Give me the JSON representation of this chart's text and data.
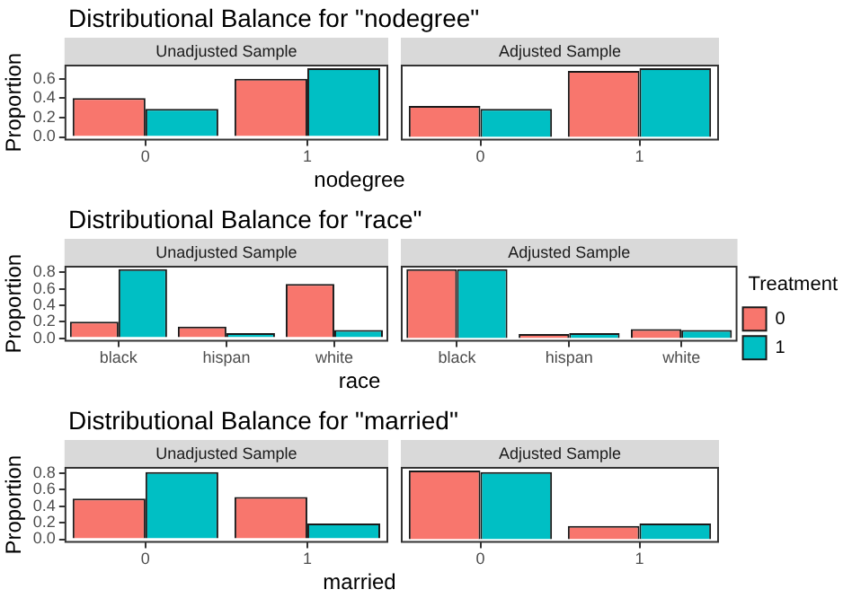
{
  "chart_data": [
    {
      "type": "bar",
      "title": "Distributional Balance for \"nodegree\"",
      "subtitle": "Unadjusted Sample",
      "xlabel": "nodegree",
      "ylabel": "Proportion",
      "categories": [
        "0",
        "1"
      ],
      "series": [
        {
          "color": "#f8766d",
          "values": [
            0.4,
            0.6
          ]
        },
        {
          "color": "#00bfc4",
          "values": [
            0.29,
            0.71
          ]
        }
      ],
      "ylim": [
        -0.036,
        0.746
      ],
      "yticks": [
        {
          "value": 0,
          "label": "0.0"
        },
        {
          "value": 0.2,
          "label": "0.2"
        },
        {
          "value": 0.4,
          "label": "0.4"
        },
        {
          "value": 0.6,
          "label": "0.6"
        }
      ],
      "grid": false,
      "legend": false
    },
    {
      "type": "bar",
      "subtitle": "Adjusted Sample",
      "categories": [
        "0",
        "1"
      ],
      "series": [
        {
          "color": "#f8766d",
          "values": [
            0.32,
            0.68
          ]
        },
        {
          "color": "#00bfc4",
          "values": [
            0.29,
            0.71
          ]
        }
      ],
      "ylim": [
        -0.036,
        0.746
      ],
      "tick_labels": "x",
      "grid": false,
      "legend": false
    },
    {
      "type": "bar",
      "title": "Distributional Balance for \"race\"",
      "subtitle": "Unadjusted Sample",
      "xlabel": "race",
      "ylabel": "Proportion",
      "categories": [
        "black",
        "hispan",
        "white"
      ],
      "series": [
        {
          "color": "#f8766d",
          "values": [
            0.2,
            0.14,
            0.66
          ]
        },
        {
          "color": "#00bfc4",
          "values": [
            0.84,
            0.06,
            0.1
          ]
        }
      ],
      "ylim": [
        -0.042,
        0.882
      ],
      "yticks": [
        {
          "value": 0,
          "label": "0.0"
        },
        {
          "value": 0.2,
          "label": "0.2"
        },
        {
          "value": 0.4,
          "label": "0.4"
        },
        {
          "value": 0.6,
          "label": "0.6"
        },
        {
          "value": 0.8,
          "label": "0.8"
        }
      ],
      "grid": false,
      "legend": false
    },
    {
      "type": "bar",
      "subtitle": "Adjusted Sample",
      "legend_title": "Treatment",
      "categories": [
        "black",
        "hispan",
        "white"
      ],
      "series": [
        {
          "name": "0",
          "color": "#f8766d",
          "values": [
            0.84,
            0.05,
            0.11
          ]
        },
        {
          "name": "1",
          "color": "#00bfc4",
          "values": [
            0.84,
            0.06,
            0.1
          ]
        }
      ],
      "ylim": [
        -0.042,
        0.882
      ],
      "tick_labels": "x",
      "grid": false,
      "legend": "right"
    },
    {
      "type": "bar",
      "title": "Distributional Balance for \"married\"",
      "subtitle": "Unadjusted Sample",
      "xlabel": "married",
      "ylabel": "Proportion",
      "categories": [
        "0",
        "1"
      ],
      "series": [
        {
          "color": "#f8766d",
          "values": [
            0.49,
            0.51
          ]
        },
        {
          "color": "#00bfc4",
          "values": [
            0.81,
            0.19
          ]
        }
      ],
      "ylim": [
        -0.042,
        0.872
      ],
      "yticks": [
        {
          "value": 0,
          "label": "0.0"
        },
        {
          "value": 0.2,
          "label": "0.2"
        },
        {
          "value": 0.4,
          "label": "0.4"
        },
        {
          "value": 0.6,
          "label": "0.6"
        },
        {
          "value": 0.8,
          "label": "0.8"
        }
      ],
      "grid": false,
      "legend": false
    },
    {
      "type": "bar",
      "subtitle": "Adjusted Sample",
      "categories": [
        "0",
        "1"
      ],
      "series": [
        {
          "color": "#f8766d",
          "values": [
            0.83,
            0.16
          ]
        },
        {
          "color": "#00bfc4",
          "values": [
            0.81,
            0.19
          ]
        }
      ],
      "ylim": [
        -0.042,
        0.872
      ],
      "tick_labels": "x",
      "grid": false,
      "legend": false
    }
  ]
}
